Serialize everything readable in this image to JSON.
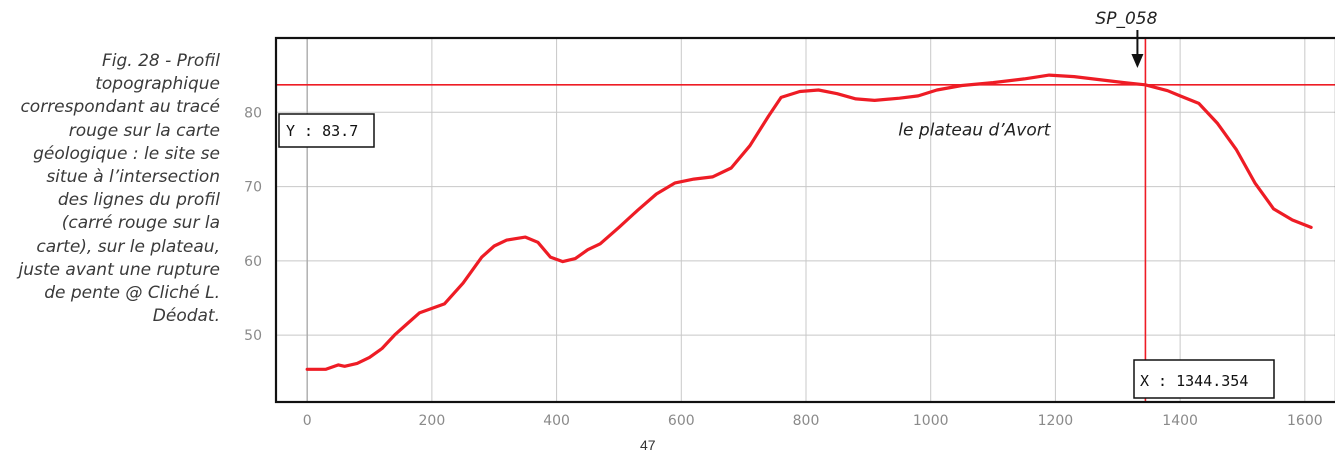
{
  "caption": "Fig. 28 - Profil topographique correspondant au tracé rouge sur la carte géologique : le site se situe à l’intersection des lignes du profil (carré rouge sur la carte), sur le plateau, juste avant une rupture de pente @ Cliché L. Déodat.",
  "page_number": "47",
  "chart_data": {
    "type": "line",
    "title": "",
    "xlabel": "",
    "ylabel": "",
    "xlim": [
      -50,
      1650
    ],
    "ylim": [
      41,
      90
    ],
    "grid": true,
    "x_ticks": [
      0,
      200,
      400,
      600,
      800,
      1000,
      1200,
      1400,
      1600
    ],
    "y_ticks": [
      50,
      60,
      70,
      80
    ],
    "series": [
      {
        "color": "#ee1c25",
        "points": [
          [
            0,
            45.4
          ],
          [
            30,
            45.4
          ],
          [
            50,
            46.0
          ],
          [
            60,
            45.8
          ],
          [
            80,
            46.2
          ],
          [
            100,
            47.0
          ],
          [
            120,
            48.2
          ],
          [
            140,
            50.0
          ],
          [
            160,
            51.5
          ],
          [
            180,
            53.0
          ],
          [
            200,
            53.6
          ],
          [
            220,
            54.2
          ],
          [
            250,
            57.0
          ],
          [
            280,
            60.5
          ],
          [
            300,
            62.0
          ],
          [
            320,
            62.8
          ],
          [
            350,
            63.2
          ],
          [
            370,
            62.5
          ],
          [
            390,
            60.5
          ],
          [
            410,
            59.9
          ],
          [
            430,
            60.3
          ],
          [
            450,
            61.5
          ],
          [
            470,
            62.3
          ],
          [
            500,
            64.5
          ],
          [
            530,
            66.8
          ],
          [
            560,
            69.0
          ],
          [
            590,
            70.5
          ],
          [
            620,
            71.0
          ],
          [
            650,
            71.3
          ],
          [
            680,
            72.5
          ],
          [
            710,
            75.5
          ],
          [
            740,
            79.5
          ],
          [
            760,
            82.0
          ],
          [
            790,
            82.8
          ],
          [
            820,
            83.0
          ],
          [
            850,
            82.5
          ],
          [
            880,
            81.8
          ],
          [
            910,
            81.6
          ],
          [
            950,
            81.9
          ],
          [
            980,
            82.2
          ],
          [
            1010,
            83.0
          ],
          [
            1050,
            83.6
          ],
          [
            1100,
            84.0
          ],
          [
            1150,
            84.5
          ],
          [
            1190,
            85.0
          ],
          [
            1230,
            84.8
          ],
          [
            1270,
            84.4
          ],
          [
            1310,
            84.0
          ],
          [
            1344,
            83.7
          ],
          [
            1380,
            82.9
          ],
          [
            1400,
            82.2
          ],
          [
            1430,
            81.2
          ],
          [
            1460,
            78.5
          ],
          [
            1490,
            75.0
          ],
          [
            1520,
            70.5
          ],
          [
            1550,
            67.0
          ],
          [
            1580,
            65.5
          ],
          [
            1610,
            64.5
          ]
        ]
      }
    ],
    "crosshair": {
      "x": 1344.354,
      "y": 83.7,
      "color": "#ee1c25"
    },
    "y_readout": "Y : 83.7",
    "x_readout": "X : 1344.354",
    "annotations": [
      {
        "text": "SP_058",
        "x": 1344.354,
        "y": 89.5,
        "arrow": true
      },
      {
        "text": "le plateau d’Avort",
        "x": 1070,
        "y": 78.5
      }
    ]
  }
}
